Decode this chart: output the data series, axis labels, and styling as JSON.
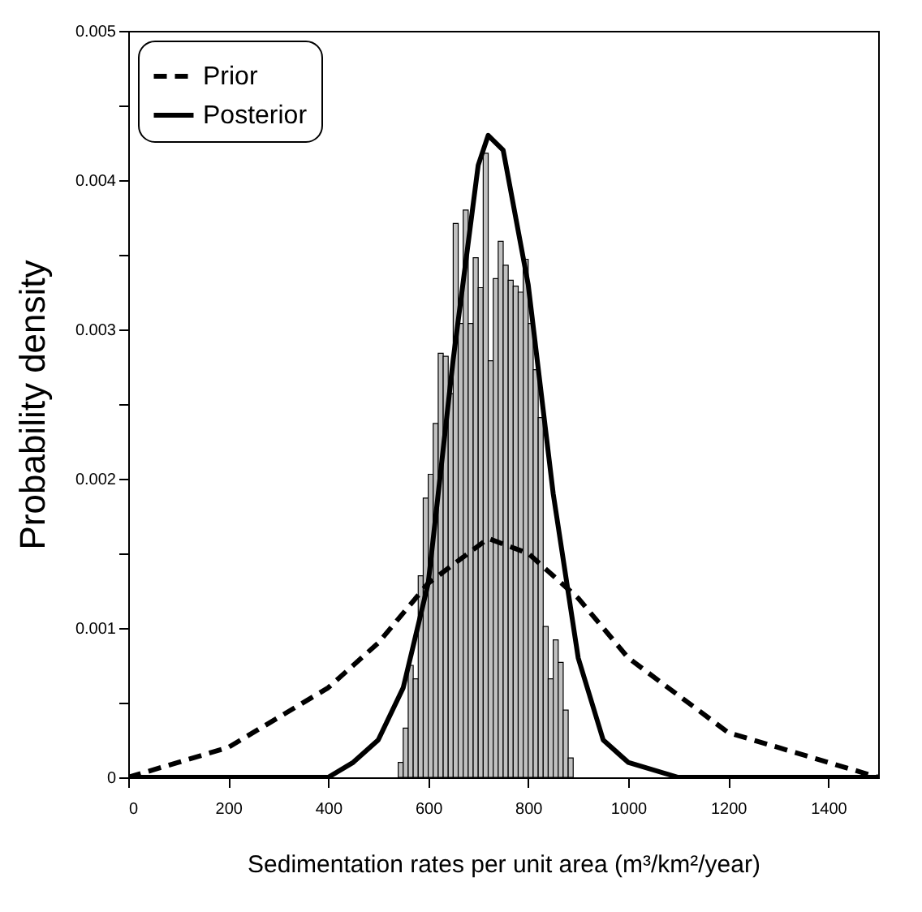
{
  "chart_data": {
    "type": "histogram",
    "xlabel": "Sedimentation rates per unit area (m³/km²/year)",
    "ylabel": "Probability density",
    "xlim": [
      0,
      1500
    ],
    "xticks": [
      0,
      200,
      400,
      600,
      800,
      1000,
      1200,
      1400
    ],
    "ylim": [
      0,
      0.005
    ],
    "yticks": [
      0,
      {
        "value": 0.0005,
        "label": null
      },
      0.001,
      {
        "value": 0.0015,
        "label": null
      },
      0.002,
      {
        "value": 0.0025,
        "label": null
      },
      0.003,
      {
        "value": 0.0035,
        "label": null
      },
      0.004,
      {
        "value": 0.0045,
        "label": null
      },
      0.005
    ],
    "grid": false,
    "legend": "top left",
    "series": [
      {
        "color": "#c0c0c0",
        "bins": [
          540,
          550,
          560,
          570,
          580,
          590,
          600,
          610,
          620,
          630,
          640,
          650,
          660,
          670,
          680,
          690,
          700,
          710,
          720,
          730,
          740,
          750,
          760,
          770,
          780,
          790,
          800,
          810,
          820,
          830,
          840,
          850,
          860,
          870,
          880,
          890
        ],
        "values": [
          0.0001,
          0.00033,
          0.00075,
          0.00066,
          0.00135,
          0.00187,
          0.00203,
          0.00237,
          0.00284,
          0.00282,
          0.00257,
          0.00371,
          0.00304,
          0.0038,
          0.00304,
          0.00348,
          0.00328,
          0.00418,
          0.00279,
          0.00334,
          0.00359,
          0.00343,
          0.00333,
          0.00329,
          0.00325,
          0.00347,
          0.00304,
          0.00273,
          0.00241,
          0.00101,
          0.00066,
          0.00092,
          0.00077,
          0.00045,
          0.00013
        ]
      },
      {
        "type": "line",
        "name": "Prior",
        "color": "#000000",
        "line_style": "dashed",
        "x": [
          0,
          100,
          200,
          300,
          400,
          500,
          600,
          700,
          720,
          800,
          900,
          1000,
          1100,
          1200,
          1300,
          1400,
          1500
        ],
        "values": [
          0,
          0.0001,
          0.0002,
          0.0004,
          0.0006,
          0.0009,
          0.0013,
          0.00155,
          0.0016,
          0.0015,
          0.0012,
          0.0008,
          0.00055,
          0.0003,
          0.0002,
          0.0001,
          0
        ]
      },
      {
        "type": "line",
        "name": "Posterior",
        "color": "#000000",
        "line_style": "solid",
        "x": [
          0,
          300,
          400,
          450,
          500,
          550,
          600,
          650,
          700,
          720,
          750,
          800,
          850,
          900,
          950,
          1000,
          1100,
          1500
        ],
        "values": [
          0,
          0,
          0,
          0.0001,
          0.00025,
          0.0006,
          0.0013,
          0.0028,
          0.0041,
          0.0043,
          0.0042,
          0.0033,
          0.0019,
          0.0008,
          0.00025,
          0.0001,
          0,
          0
        ]
      }
    ]
  }
}
